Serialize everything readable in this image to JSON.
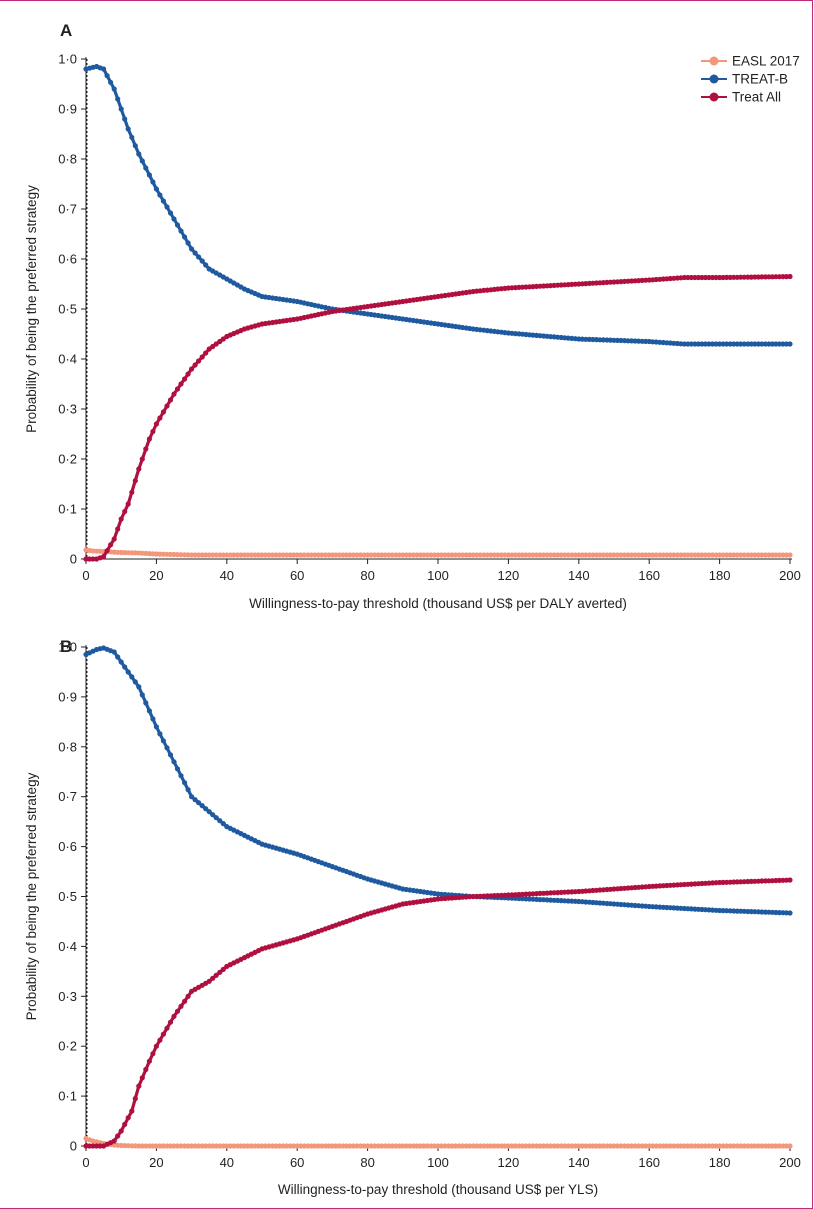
{
  "colors": {
    "easl": "#f4967a",
    "treatb": "#1f5aa0",
    "treatall": "#b0103f",
    "axis": "#231f20"
  },
  "chart_data": [
    {
      "type": "line",
      "panel_label": "A",
      "xlabel": "Willingness-to-pay threshold (thousand US$ per DALY averted)",
      "ylabel": "Probability of being the preferred strategy",
      "xlim": [
        0,
        200
      ],
      "ylim": [
        0,
        1
      ],
      "x_ticks": [
        0,
        20,
        40,
        60,
        80,
        100,
        120,
        140,
        160,
        180,
        200
      ],
      "x_tick_labels": [
        "0",
        "20",
        "40",
        "60",
        "80",
        "100",
        "120",
        "140",
        "160",
        "180",
        "200"
      ],
      "y_ticks": [
        0,
        0.1,
        0.2,
        0.3,
        0.4,
        0.5,
        0.6,
        0.7,
        0.8,
        0.9,
        1.0
      ],
      "y_tick_labels": [
        "0",
        "0·1",
        "0·2",
        "0·3",
        "0·4",
        "0·5",
        "0·6",
        "0·7",
        "0·8",
        "0·9",
        "1·0"
      ],
      "legend": {
        "position": "top-right",
        "entries": [
          "EASL 2017",
          "TREAT-B",
          "Treat All"
        ]
      },
      "series": [
        {
          "name": "EASL 2017",
          "color_key": "easl",
          "points": [
            [
              0,
              0.018
            ],
            [
              2,
              0.016
            ],
            [
              5,
              0.015
            ],
            [
              10,
              0.013
            ],
            [
              15,
              0.012
            ],
            [
              20,
              0.01
            ],
            [
              25,
              0.009
            ],
            [
              30,
              0.008
            ],
            [
              40,
              0.008
            ],
            [
              60,
              0.008
            ],
            [
              100,
              0.008
            ],
            [
              140,
              0.008
            ],
            [
              200,
              0.008
            ]
          ]
        },
        {
          "name": "TREAT-B",
          "color_key": "treatb",
          "points": [
            [
              0,
              0.98
            ],
            [
              3,
              0.985
            ],
            [
              5,
              0.98
            ],
            [
              8,
              0.94
            ],
            [
              12,
              0.86
            ],
            [
              15,
              0.81
            ],
            [
              20,
              0.74
            ],
            [
              25,
              0.68
            ],
            [
              30,
              0.62
            ],
            [
              35,
              0.58
            ],
            [
              40,
              0.56
            ],
            [
              45,
              0.54
            ],
            [
              50,
              0.525
            ],
            [
              60,
              0.515
            ],
            [
              70,
              0.5
            ],
            [
              80,
              0.49
            ],
            [
              90,
              0.48
            ],
            [
              100,
              0.47
            ],
            [
              110,
              0.46
            ],
            [
              120,
              0.452
            ],
            [
              140,
              0.44
            ],
            [
              160,
              0.435
            ],
            [
              170,
              0.43
            ],
            [
              180,
              0.43
            ],
            [
              200,
              0.43
            ]
          ]
        },
        {
          "name": "Treat All",
          "color_key": "treatall",
          "points": [
            [
              0,
              0
            ],
            [
              3,
              0
            ],
            [
              5,
              0.005
            ],
            [
              8,
              0.04
            ],
            [
              10,
              0.08
            ],
            [
              12,
              0.11
            ],
            [
              15,
              0.18
            ],
            [
              18,
              0.24
            ],
            [
              20,
              0.27
            ],
            [
              25,
              0.33
            ],
            [
              30,
              0.38
            ],
            [
              35,
              0.42
            ],
            [
              40,
              0.445
            ],
            [
              45,
              0.46
            ],
            [
              50,
              0.47
            ],
            [
              60,
              0.48
            ],
            [
              70,
              0.495
            ],
            [
              80,
              0.505
            ],
            [
              90,
              0.515
            ],
            [
              100,
              0.525
            ],
            [
              110,
              0.535
            ],
            [
              120,
              0.542
            ],
            [
              140,
              0.55
            ],
            [
              160,
              0.558
            ],
            [
              170,
              0.563
            ],
            [
              180,
              0.563
            ],
            [
              200,
              0.565
            ]
          ]
        }
      ]
    },
    {
      "type": "line",
      "panel_label": "B",
      "xlabel": "Willingness-to-pay threshold (thousand US$ per YLS)",
      "ylabel": "Probability of being the preferred strategy",
      "xlim": [
        0,
        200
      ],
      "ylim": [
        0,
        1
      ],
      "x_ticks": [
        0,
        20,
        40,
        60,
        80,
        100,
        120,
        140,
        160,
        180,
        200
      ],
      "x_tick_labels": [
        "0",
        "20",
        "40",
        "60",
        "80",
        "100",
        "120",
        "140",
        "160",
        "180",
        "200"
      ],
      "y_ticks": [
        0,
        0.1,
        0.2,
        0.3,
        0.4,
        0.5,
        0.6,
        0.7,
        0.8,
        0.9,
        1.0
      ],
      "y_tick_labels": [
        "0",
        "0·1",
        "0·2",
        "0·3",
        "0·4",
        "0·5",
        "0·6",
        "0·7",
        "0·8",
        "0·9",
        "1·0"
      ],
      "series": [
        {
          "name": "EASL 2017",
          "color_key": "easl",
          "points": [
            [
              0,
              0.015
            ],
            [
              2,
              0.01
            ],
            [
              5,
              0.005
            ],
            [
              8,
              0.002
            ],
            [
              10,
              0.001
            ],
            [
              15,
              0
            ],
            [
              20,
              0
            ],
            [
              60,
              0
            ],
            [
              100,
              0
            ],
            [
              150,
              0
            ],
            [
              200,
              0
            ]
          ]
        },
        {
          "name": "TREAT-B",
          "color_key": "treatb",
          "points": [
            [
              0,
              0.985
            ],
            [
              3,
              0.995
            ],
            [
              5,
              0.998
            ],
            [
              8,
              0.99
            ],
            [
              10,
              0.97
            ],
            [
              15,
              0.92
            ],
            [
              20,
              0.84
            ],
            [
              25,
              0.77
            ],
            [
              30,
              0.7
            ],
            [
              35,
              0.67
            ],
            [
              40,
              0.64
            ],
            [
              50,
              0.605
            ],
            [
              60,
              0.585
            ],
            [
              70,
              0.56
            ],
            [
              80,
              0.535
            ],
            [
              90,
              0.515
            ],
            [
              100,
              0.505
            ],
            [
              110,
              0.5
            ],
            [
              120,
              0.497
            ],
            [
              140,
              0.49
            ],
            [
              160,
              0.48
            ],
            [
              180,
              0.472
            ],
            [
              200,
              0.467
            ]
          ]
        },
        {
          "name": "Treat All",
          "color_key": "treatall",
          "points": [
            [
              0,
              0
            ],
            [
              5,
              0
            ],
            [
              8,
              0.01
            ],
            [
              10,
              0.03
            ],
            [
              13,
              0.07
            ],
            [
              15,
              0.12
            ],
            [
              18,
              0.17
            ],
            [
              20,
              0.2
            ],
            [
              25,
              0.26
            ],
            [
              30,
              0.31
            ],
            [
              35,
              0.33
            ],
            [
              40,
              0.36
            ],
            [
              50,
              0.395
            ],
            [
              60,
              0.415
            ],
            [
              70,
              0.44
            ],
            [
              80,
              0.465
            ],
            [
              90,
              0.485
            ],
            [
              100,
              0.495
            ],
            [
              110,
              0.5
            ],
            [
              120,
              0.503
            ],
            [
              140,
              0.51
            ],
            [
              160,
              0.52
            ],
            [
              180,
              0.528
            ],
            [
              200,
              0.533
            ]
          ]
        }
      ]
    }
  ]
}
